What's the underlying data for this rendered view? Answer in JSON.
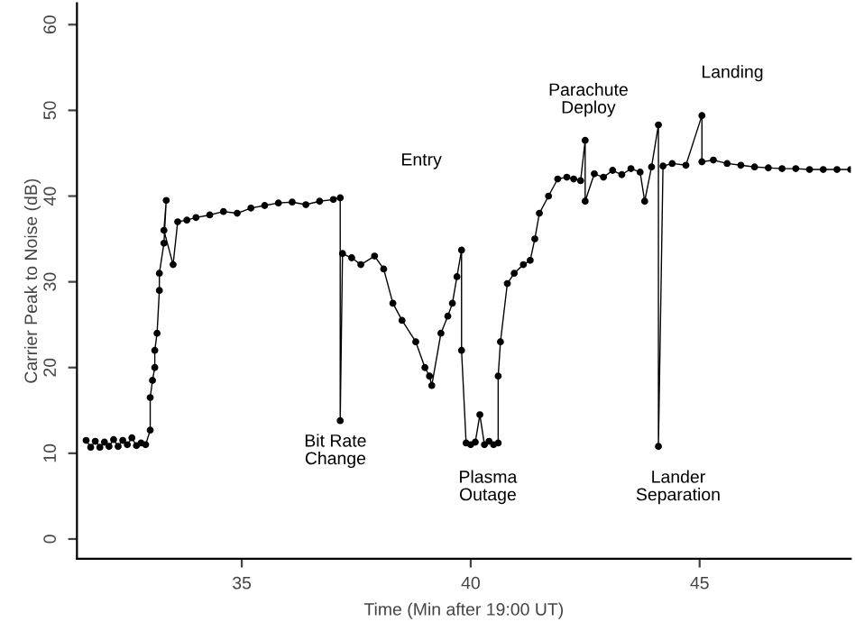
{
  "chart_data": {
    "type": "line",
    "xlabel": "Time (Min after 19:00 UT)",
    "ylabel": "Carrier Peak to Noise (dB)",
    "xlim": [
      31.4,
      48.3
    ],
    "ylim": [
      -2.3,
      62.5
    ],
    "xticks": [
      35,
      40,
      45
    ],
    "yticks": [
      0,
      10,
      20,
      30,
      40,
      50,
      60
    ],
    "marker": "circle",
    "line_style": "solid",
    "grid": false,
    "legend": false,
    "series": [
      {
        "color": "#000000",
        "x": [
          31.6,
          31.7,
          31.8,
          31.9,
          32.0,
          32.1,
          32.2,
          32.3,
          32.4,
          32.5,
          32.6,
          32.7,
          32.8,
          32.9,
          33.0,
          33.0,
          33.05,
          33.1,
          33.1,
          33.15,
          33.2,
          33.2,
          33.3,
          33.35,
          33.3,
          33.5,
          33.6,
          33.8,
          34.0,
          34.3,
          34.6,
          34.9,
          35.2,
          35.5,
          35.8,
          36.1,
          36.4,
          36.7,
          37.0,
          37.15,
          37.15,
          37.2,
          37.4,
          37.6,
          37.9,
          38.1,
          38.3,
          38.5,
          38.8,
          39.0,
          39.1,
          39.15,
          39.35,
          39.5,
          39.6,
          39.7,
          39.8,
          39.8,
          39.9,
          40.0,
          40.1,
          40.2,
          40.3,
          40.4,
          40.5,
          40.6,
          40.6,
          40.65,
          40.8,
          40.95,
          41.15,
          41.3,
          41.4,
          41.5,
          41.7,
          41.9,
          42.1,
          42.25,
          42.4,
          42.5,
          42.5,
          42.7,
          42.9,
          43.1,
          43.3,
          43.5,
          43.7,
          43.8,
          43.95,
          44.1,
          44.1,
          44.2,
          44.4,
          44.7,
          45.05,
          45.05,
          45.3,
          45.6,
          45.9,
          46.2,
          46.5,
          46.8,
          47.1,
          47.4,
          47.7,
          48.0,
          48.3
        ],
        "values": [
          11.5,
          10.7,
          11.4,
          10.7,
          11.3,
          10.8,
          11.6,
          10.8,
          11.5,
          11.0,
          11.8,
          10.9,
          11.2,
          11.0,
          12.7,
          16.5,
          18.5,
          20,
          22,
          24,
          29,
          31,
          34.5,
          39.5,
          36,
          32,
          37,
          37.2,
          37.5,
          37.8,
          38.2,
          38.0,
          38.6,
          38.9,
          39.2,
          39.3,
          39.0,
          39.4,
          39.6,
          39.8,
          13.8,
          33.3,
          32.8,
          32,
          33,
          31.5,
          27.5,
          25.5,
          23,
          20,
          19,
          17.9,
          24,
          26,
          27.5,
          30.6,
          33.7,
          22,
          11.2,
          11.0,
          11.3,
          14.5,
          11.0,
          11.4,
          11.0,
          11.2,
          19,
          23,
          29.8,
          31,
          32,
          32.5,
          35,
          38,
          40,
          42,
          42.2,
          42,
          41.8,
          46.5,
          39.4,
          42.6,
          42.2,
          43.0,
          42.5,
          43.2,
          42.8,
          39.4,
          43.4,
          48.3,
          10.8,
          43.5,
          43.8,
          43.6,
          49.4,
          44,
          44.2,
          43.8,
          43.6,
          43.4,
          43.3,
          43.2,
          43.2,
          43.1,
          43.1,
          43.1,
          43.1
        ]
      }
    ],
    "annotations": [
      "Entry",
      "Bit Rate\nChange",
      "Plasma\nOutage",
      "Parachute\nDeploy",
      "Lander\nSeparation",
      "Landing"
    ]
  }
}
